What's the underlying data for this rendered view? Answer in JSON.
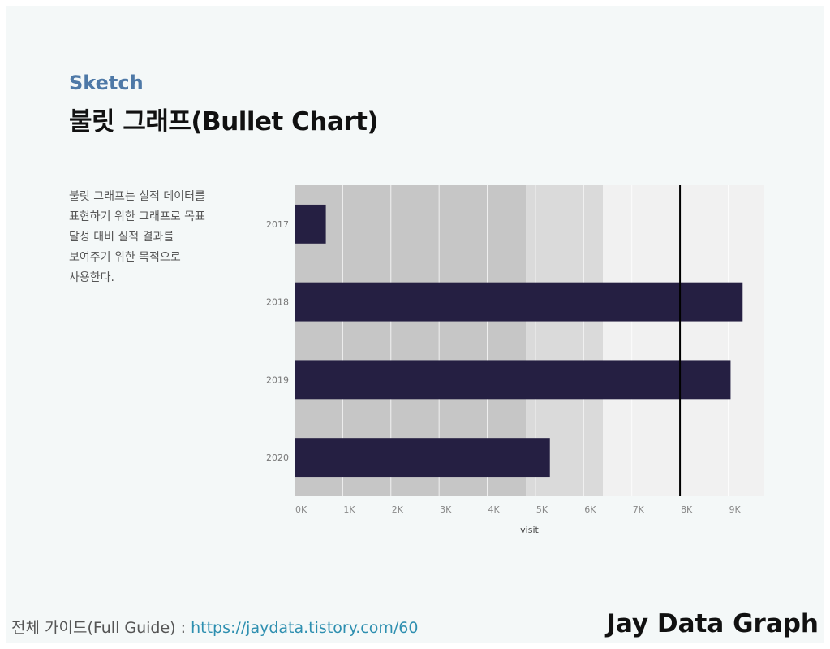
{
  "header": {
    "subtitle": "Sketch",
    "title": "불릿 그래프(Bullet Chart)"
  },
  "description": {
    "lines": [
      "불릿 그래프는 실적 데이터를",
      "표현하기 위한 그래프로 목표",
      "달성 대비 실적 결과를",
      "보여주기 위한 목적으로",
      "사용한다."
    ]
  },
  "footer": {
    "guide_label": "전체 가이드(Full Guide) : ",
    "guide_link": "https://jaydata.tistory.com/60",
    "brand": "Jay Data Graph"
  },
  "chart_data": {
    "type": "bar",
    "orientation": "horizontal",
    "categories": [
      "2017",
      "2018",
      "2019",
      "2020"
    ],
    "values": [
      650,
      9300,
      9050,
      5300
    ],
    "target": 8000,
    "bands": [
      {
        "from": 0,
        "to": 4800,
        "color": "#c6c6c6"
      },
      {
        "from": 4800,
        "to": 6400,
        "color": "#dadada"
      },
      {
        "from": 6400,
        "to": 9750,
        "color": "#f1f1f1"
      }
    ],
    "xlim": [
      0,
      9750
    ],
    "xticks": [
      0,
      1000,
      2000,
      3000,
      4000,
      5000,
      6000,
      7000,
      8000,
      9000
    ],
    "xtick_labels": [
      "0K",
      "1K",
      "2K",
      "3K",
      "4K",
      "5K",
      "6K",
      "7K",
      "8K",
      "9K"
    ],
    "xlabel": "visit",
    "ylabel": "",
    "title": "",
    "grid": true,
    "bar_color": "#251f42",
    "target_color": "#000000"
  }
}
